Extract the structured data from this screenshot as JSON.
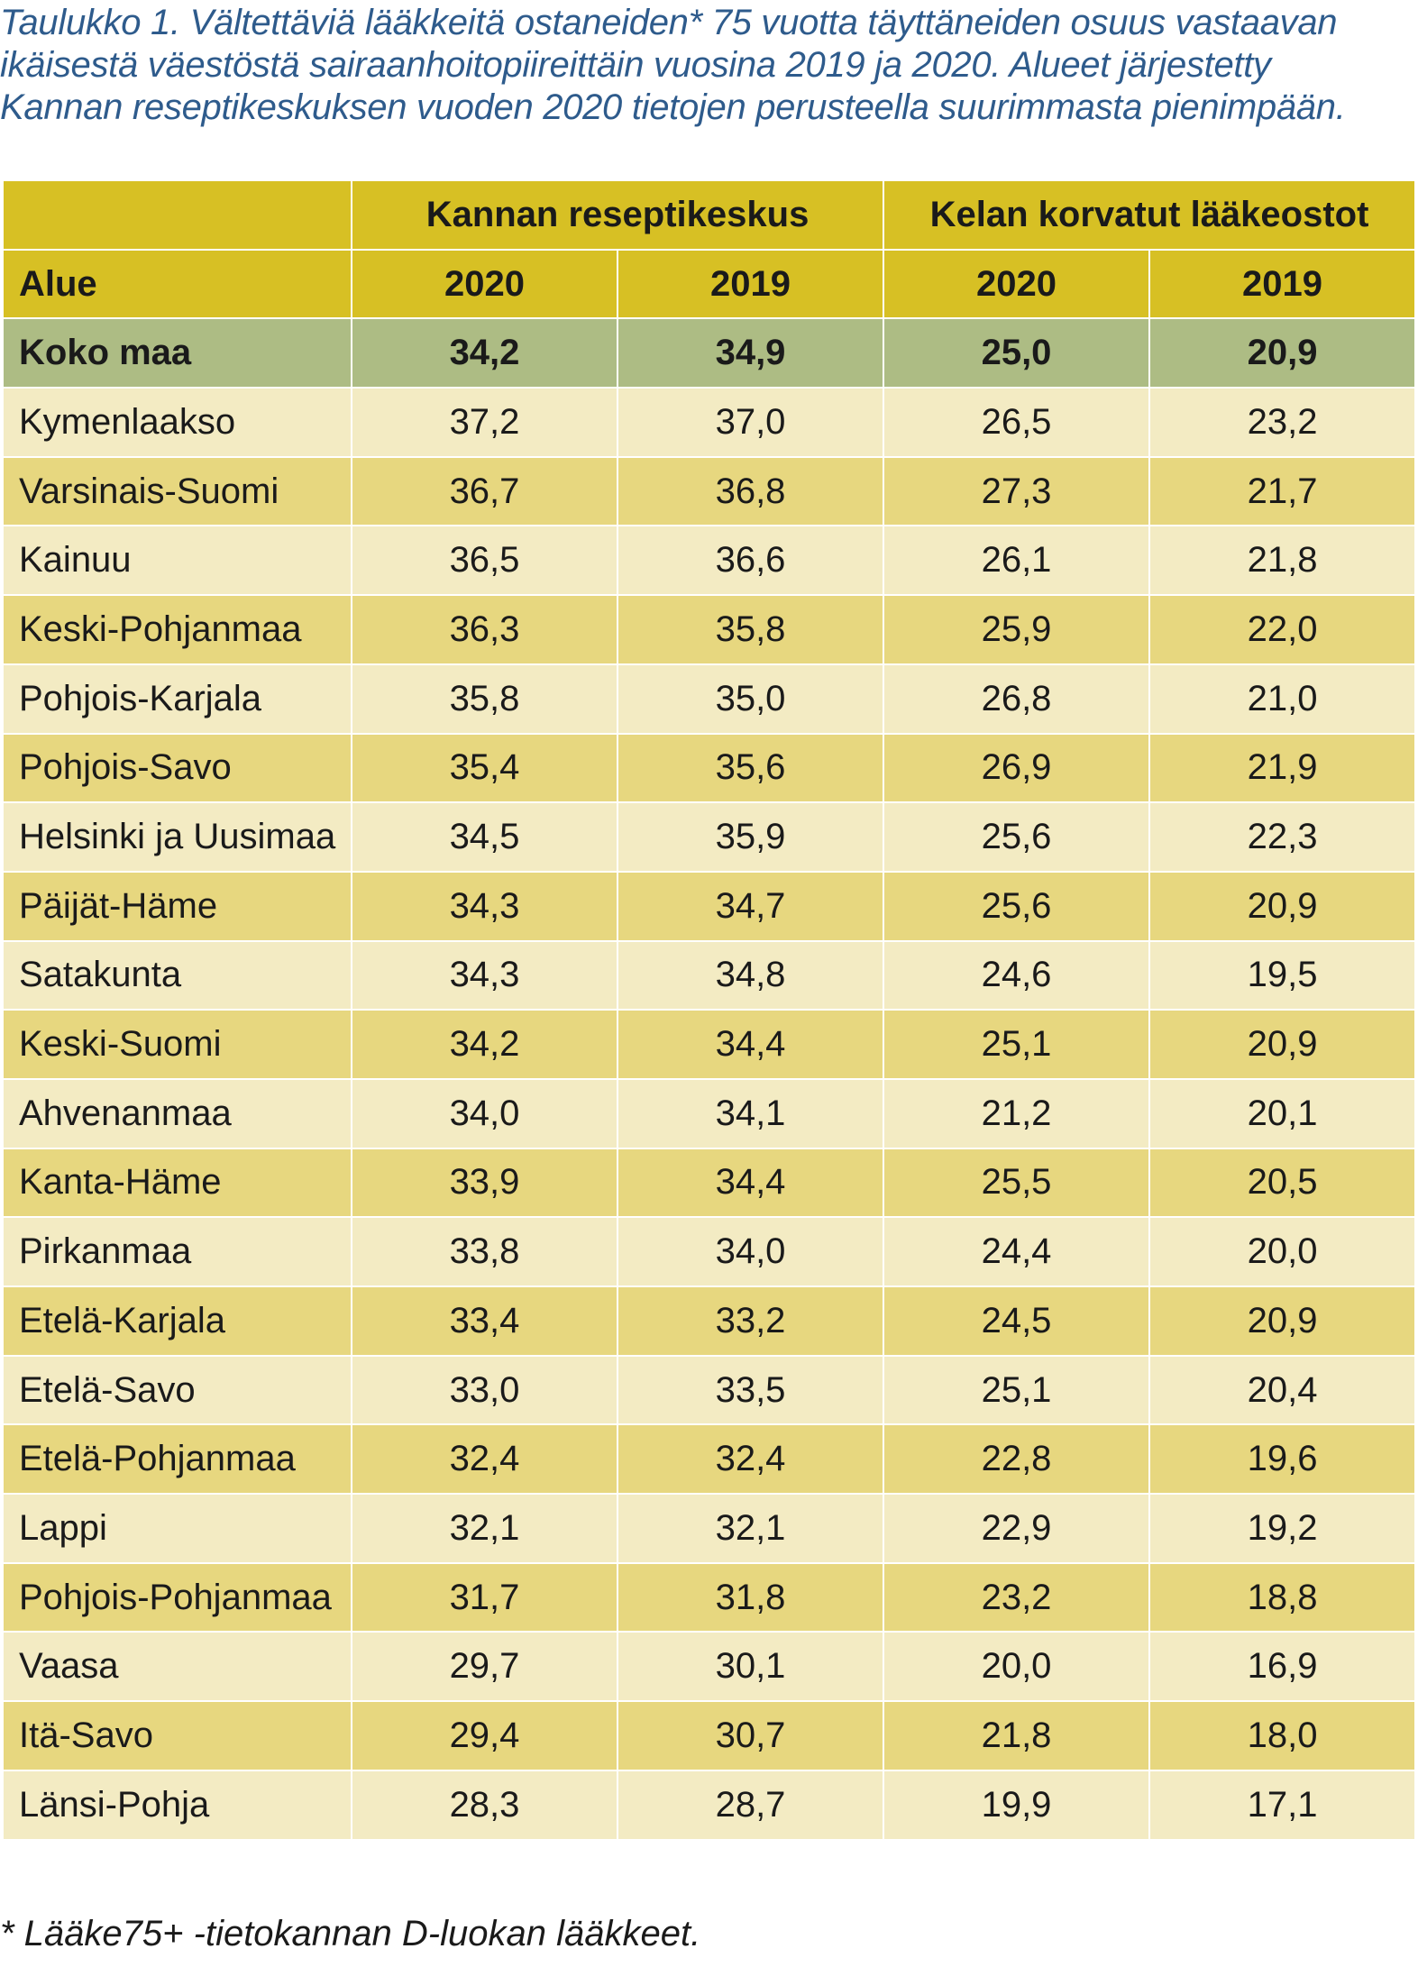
{
  "caption": {
    "line1": "Taulukko 1. Vältettäviä lääkkeitä ostaneiden* 75 vuotta täyttäneiden osuus vastaavan",
    "line2": "ikäisestä väestöstä sairaanhoitopiireittäin vuosina 2019 ja 2020. Alueet järjestetty",
    "line3": "Kannan reseptikeskuksen vuoden 2020 tietojen perusteella suurimmasta pienimpään."
  },
  "table": {
    "group_headers": [
      "Kannan reseptikeskus",
      "Kelan korvatut lääkeostot"
    ],
    "column_headers": [
      "Alue",
      "2020",
      "2019",
      "2020",
      "2019"
    ],
    "total": {
      "region": "Koko maa",
      "values": [
        "34,2",
        "34,9",
        "25,0",
        "20,9"
      ]
    },
    "rows": [
      {
        "region": "Kymenlaakso",
        "values": [
          "37,2",
          "37,0",
          "26,5",
          "23,2"
        ]
      },
      {
        "region": "Varsinais-Suomi",
        "values": [
          "36,7",
          "36,8",
          "27,3",
          "21,7"
        ]
      },
      {
        "region": "Kainuu",
        "values": [
          "36,5",
          "36,6",
          "26,1",
          "21,8"
        ]
      },
      {
        "region": "Keski-Pohjanmaa",
        "values": [
          "36,3",
          "35,8",
          "25,9",
          "22,0"
        ]
      },
      {
        "region": "Pohjois-Karjala",
        "values": [
          "35,8",
          "35,0",
          "26,8",
          "21,0"
        ]
      },
      {
        "region": "Pohjois-Savo",
        "values": [
          "35,4",
          "35,6",
          "26,9",
          "21,9"
        ]
      },
      {
        "region": "Helsinki ja Uusimaa",
        "values": [
          "34,5",
          "35,9",
          "25,6",
          "22,3"
        ]
      },
      {
        "region": "Päijät-Häme",
        "values": [
          "34,3",
          "34,7",
          "25,6",
          "20,9"
        ]
      },
      {
        "region": "Satakunta",
        "values": [
          "34,3",
          "34,8",
          "24,6",
          "19,5"
        ]
      },
      {
        "region": "Keski-Suomi",
        "values": [
          "34,2",
          "34,4",
          "25,1",
          "20,9"
        ]
      },
      {
        "region": "Ahvenanmaa",
        "values": [
          "34,0",
          "34,1",
          "21,2",
          "20,1"
        ]
      },
      {
        "region": "Kanta-Häme",
        "values": [
          "33,9",
          "34,4",
          "25,5",
          "20,5"
        ]
      },
      {
        "region": "Pirkanmaa",
        "values": [
          "33,8",
          "34,0",
          "24,4",
          "20,0"
        ]
      },
      {
        "region": "Etelä-Karjala",
        "values": [
          "33,4",
          "33,2",
          "24,5",
          "20,9"
        ]
      },
      {
        "region": "Etelä-Savo",
        "values": [
          "33,0",
          "33,5",
          "25,1",
          "20,4"
        ]
      },
      {
        "region": "Etelä-Pohjanmaa",
        "values": [
          "32,4",
          "32,4",
          "22,8",
          "19,6"
        ]
      },
      {
        "region": "Lappi",
        "values": [
          "32,1",
          "32,1",
          "22,9",
          "19,2"
        ]
      },
      {
        "region": "Pohjois-Pohjanmaa",
        "values": [
          "31,7",
          "31,8",
          "23,2",
          "18,8"
        ]
      },
      {
        "region": "Vaasa",
        "values": [
          "29,7",
          "30,1",
          "20,0",
          "16,9"
        ]
      },
      {
        "region": "Itä-Savo",
        "values": [
          "29,4",
          "30,7",
          "21,8",
          "18,0"
        ]
      },
      {
        "region": "Länsi-Pohja",
        "values": [
          "28,3",
          "28,7",
          "19,9",
          "17,1"
        ]
      }
    ]
  },
  "footnote": "* Lääke75+ -tietokannan D-luokan lääkkeet.",
  "colors": {
    "caption": "#2e5b8c",
    "header": "#d7c024",
    "total_row": "#adbc84",
    "row_light": "#f3ebc3",
    "row_dark": "#e7d77f"
  }
}
